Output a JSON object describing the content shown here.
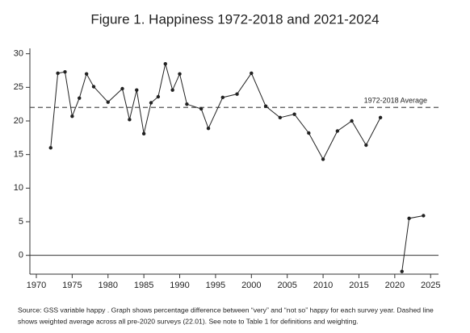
{
  "chart_data": {
    "type": "line",
    "title": "Figure 1.  Happiness 1972-2018 and 2021-2024",
    "x": [
      1972,
      1973,
      1974,
      1975,
      1976,
      1977,
      1978,
      1980,
      1982,
      1983,
      1984,
      1985,
      1986,
      1987,
      1988,
      1989,
      1990,
      1991,
      1993,
      1994,
      1996,
      1998,
      2000,
      2002,
      2004,
      2006,
      2008,
      2010,
      2012,
      2014,
      2016,
      2018,
      2020,
      2021,
      2022,
      2024
    ],
    "series": [
      {
        "color": "#222222",
        "values": [
          16.0,
          27.1,
          27.3,
          20.7,
          23.4,
          27.0,
          25.1,
          22.8,
          24.8,
          20.2,
          24.6,
          18.1,
          22.7,
          23.6,
          28.5,
          24.6,
          27.0,
          22.5,
          21.8,
          18.9,
          23.5,
          24.0,
          27.1,
          22.2,
          20.5,
          21.0,
          18.2,
          14.3,
          18.5,
          20.0,
          16.4,
          20.5,
          null,
          -2.4,
          5.5,
          5.9
        ]
      }
    ],
    "xlim": [
      1969.1,
      2026.1
    ],
    "xticks": [
      1970,
      1975,
      1980,
      1985,
      1990,
      1995,
      2000,
      2005,
      2010,
      2015,
      2020,
      2025
    ],
    "ylim": [
      -2.8,
      30.8
    ],
    "yticks": [
      0,
      5,
      10,
      15,
      20,
      25,
      30
    ],
    "reference_line": {
      "value": 22.01,
      "label": "1972-2018 Average",
      "style": "dashed",
      "color": "#555555"
    },
    "zero_line": true,
    "grid": false,
    "note": [
      "Source:  GSS variable happy . Graph shows percentage difference between “very” and “not so” happy for each survey year. Dashed line",
      "shows weighted average across all pre-2020 surveys (22.01).  See note to Table 1 for definitions and weighting."
    ]
  }
}
